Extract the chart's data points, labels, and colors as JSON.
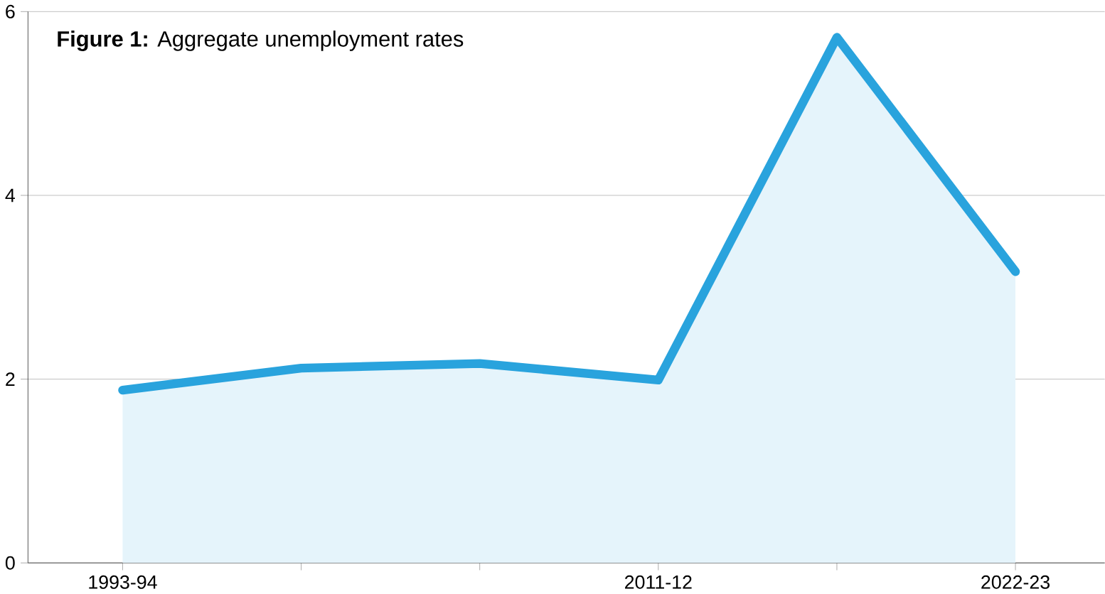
{
  "chart_data": {
    "type": "area",
    "title": "**Figure 1:** Aggregate unemployment rates",
    "categories": [
      "1993-94",
      null,
      null,
      "2011-12",
      null,
      "2022-23"
    ],
    "series": [
      {
        "color": "#29a3dd",
        "values": [
          1.88,
          2.12,
          2.17,
          1.99,
          5.72,
          3.17
        ]
      }
    ],
    "ylim": [
      0,
      6
    ],
    "yticks": [
      0,
      2,
      4,
      6
    ],
    "grid": "y"
  }
}
